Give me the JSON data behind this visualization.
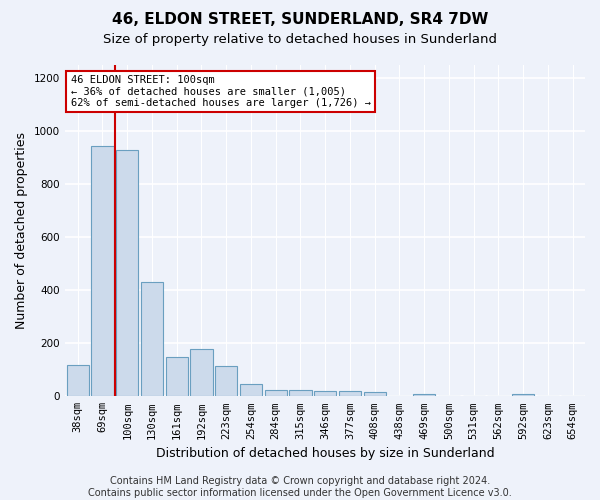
{
  "title": "46, ELDON STREET, SUNDERLAND, SR4 7DW",
  "subtitle": "Size of property relative to detached houses in Sunderland",
  "xlabel": "Distribution of detached houses by size in Sunderland",
  "ylabel": "Number of detached properties",
  "categories": [
    "38sqm",
    "69sqm",
    "100sqm",
    "130sqm",
    "161sqm",
    "192sqm",
    "223sqm",
    "254sqm",
    "284sqm",
    "315sqm",
    "346sqm",
    "377sqm",
    "408sqm",
    "438sqm",
    "469sqm",
    "500sqm",
    "531sqm",
    "562sqm",
    "592sqm",
    "623sqm",
    "654sqm"
  ],
  "values": [
    120,
    945,
    930,
    430,
    150,
    180,
    115,
    45,
    22,
    22,
    20,
    20,
    18,
    0,
    10,
    0,
    0,
    0,
    10,
    0,
    0
  ],
  "bar_color": "#ccdaeb",
  "bar_edge_color": "#6a9fc0",
  "highlight_index": 2,
  "highlight_line_color": "#cc0000",
  "annotation_text": "46 ELDON STREET: 100sqm\n← 36% of detached houses are smaller (1,005)\n62% of semi-detached houses are larger (1,726) →",
  "annotation_box_color": "#ffffff",
  "annotation_box_edge": "#cc0000",
  "ylim": [
    0,
    1250
  ],
  "yticks": [
    0,
    200,
    400,
    600,
    800,
    1000,
    1200
  ],
  "footer": "Contains HM Land Registry data © Crown copyright and database right 2024.\nContains public sector information licensed under the Open Government Licence v3.0.",
  "background_color": "#eef2fa",
  "plot_bg_color": "#eef2fa",
  "grid_color": "#ffffff",
  "title_fontsize": 11,
  "subtitle_fontsize": 9.5,
  "axis_label_fontsize": 9,
  "tick_fontsize": 7.5,
  "footer_fontsize": 7
}
